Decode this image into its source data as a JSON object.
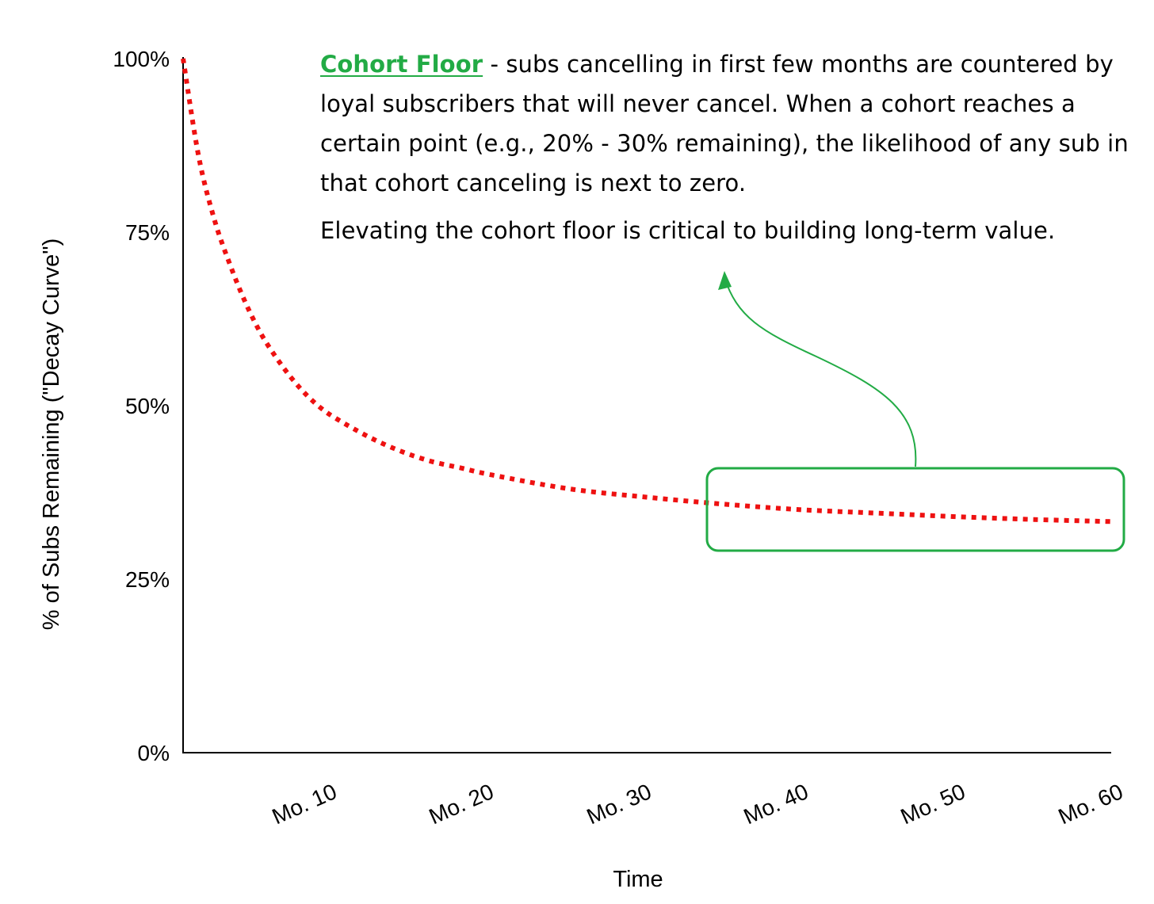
{
  "chart_data": {
    "type": "line",
    "line_style": "dotted",
    "line_color": "#ee1111",
    "xlabel": "Time",
    "ylabel": "% of Subs Remaining (\"Decay Curve\")",
    "x_tick_labels": [
      "Mo. 10",
      "Mo. 20",
      "Mo. 30",
      "Mo. 40",
      "Mo. 50",
      "Mo. 60"
    ],
    "x_ticks": [
      10,
      20,
      30,
      40,
      50,
      60
    ],
    "y_tick_labels": [
      "0%",
      "25%",
      "50%",
      "75%",
      "100%"
    ],
    "y_ticks": [
      0,
      25,
      50,
      75,
      100
    ],
    "xlim": [
      0,
      60
    ],
    "ylim": [
      0,
      100
    ],
    "grid": false,
    "series": [
      {
        "x": [
          0,
          1,
          2,
          3,
          4,
          5,
          6,
          7,
          8,
          9,
          10,
          12,
          14,
          16,
          18,
          20,
          25,
          30,
          35,
          40,
          45,
          50,
          55,
          60
        ],
        "values": [
          100,
          86,
          77,
          70.5,
          65,
          60.5,
          57,
          54,
          51.5,
          49.5,
          48,
          45.5,
          43.5,
          42,
          41,
          40,
          38,
          36.8,
          35.8,
          35,
          34.5,
          34,
          33.6,
          33.3
        ]
      }
    ],
    "annotations": {
      "highlight_box_color": "#22ab45",
      "arrow_color": "#22ab45"
    }
  },
  "annotation": {
    "floor_label": "Cohort Floor",
    "para1_rest": " - subs cancelling in first few months are countered by loyal subscribers that will never cancel. When a cohort reaches a certain point (e.g., 20% - 30% remaining), the likelihood of any sub in that cohort canceling is next to zero.",
    "para2": "Elevating the cohort floor is critical to building long-term value."
  }
}
